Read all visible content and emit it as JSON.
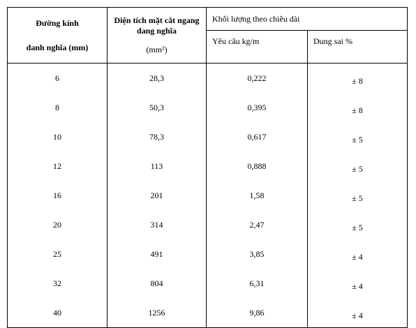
{
  "table": {
    "header": {
      "diameter": [
        "Đường kính",
        "danh nghĩa (mm)"
      ],
      "area": [
        "Diện tích mặt cắt ngang",
        "dang nghĩa",
        "(mm²)"
      ],
      "mass": "Khối lượng theo chiều dài",
      "required": "Yêu câu kg/m",
      "tolerance": "Dung sai %"
    },
    "rows": [
      [
        "6",
        "28,3",
        "0,222",
        "± 8"
      ],
      [
        "8",
        "50,3",
        "0,395",
        "± 8"
      ],
      [
        "10",
        "78,3",
        "0,617",
        "± 5"
      ],
      [
        "12",
        "113",
        "0,888",
        "± 5"
      ],
      [
        "16",
        "201",
        "1,58",
        "± 5"
      ],
      [
        "20",
        "314",
        "2,47",
        "± 5"
      ],
      [
        "25",
        "491",
        "3,85",
        "± 4"
      ],
      [
        "32",
        "804",
        "6,31",
        "± 4"
      ],
      [
        "40",
        "1256",
        "9,86",
        "± 4"
      ]
    ]
  }
}
